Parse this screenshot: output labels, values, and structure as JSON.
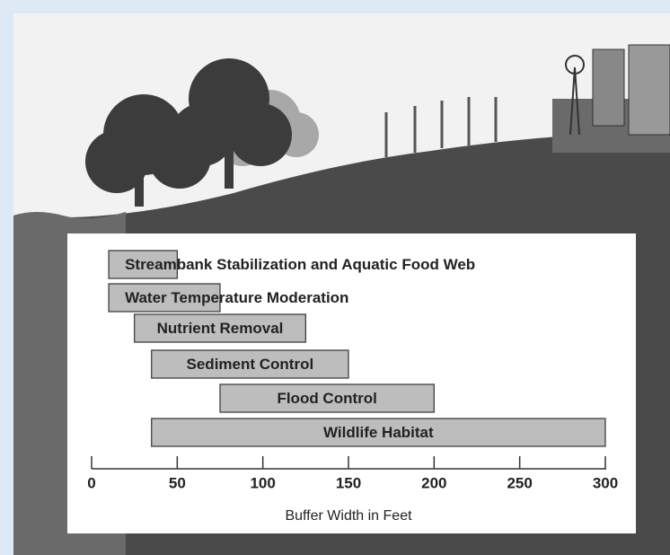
{
  "chart_data": {
    "type": "range-bar",
    "categories": [
      "Streambank Stabilization and Aquatic Food Web",
      "Water Temperature Moderation",
      "Nutrient Removal",
      "Sediment Control",
      "Flood Control",
      "Wildlife Habitat"
    ],
    "values": [
      [
        10,
        50
      ],
      [
        10,
        75
      ],
      [
        25,
        125
      ],
      [
        35,
        150
      ],
      [
        75,
        200
      ],
      [
        35,
        300
      ]
    ],
    "color": "#bdbdbd",
    "xlabel": "Buffer Width in Feet",
    "xlim": [
      0,
      300
    ],
    "xticks": [
      0,
      50,
      100,
      150,
      200,
      250,
      300
    ]
  }
}
